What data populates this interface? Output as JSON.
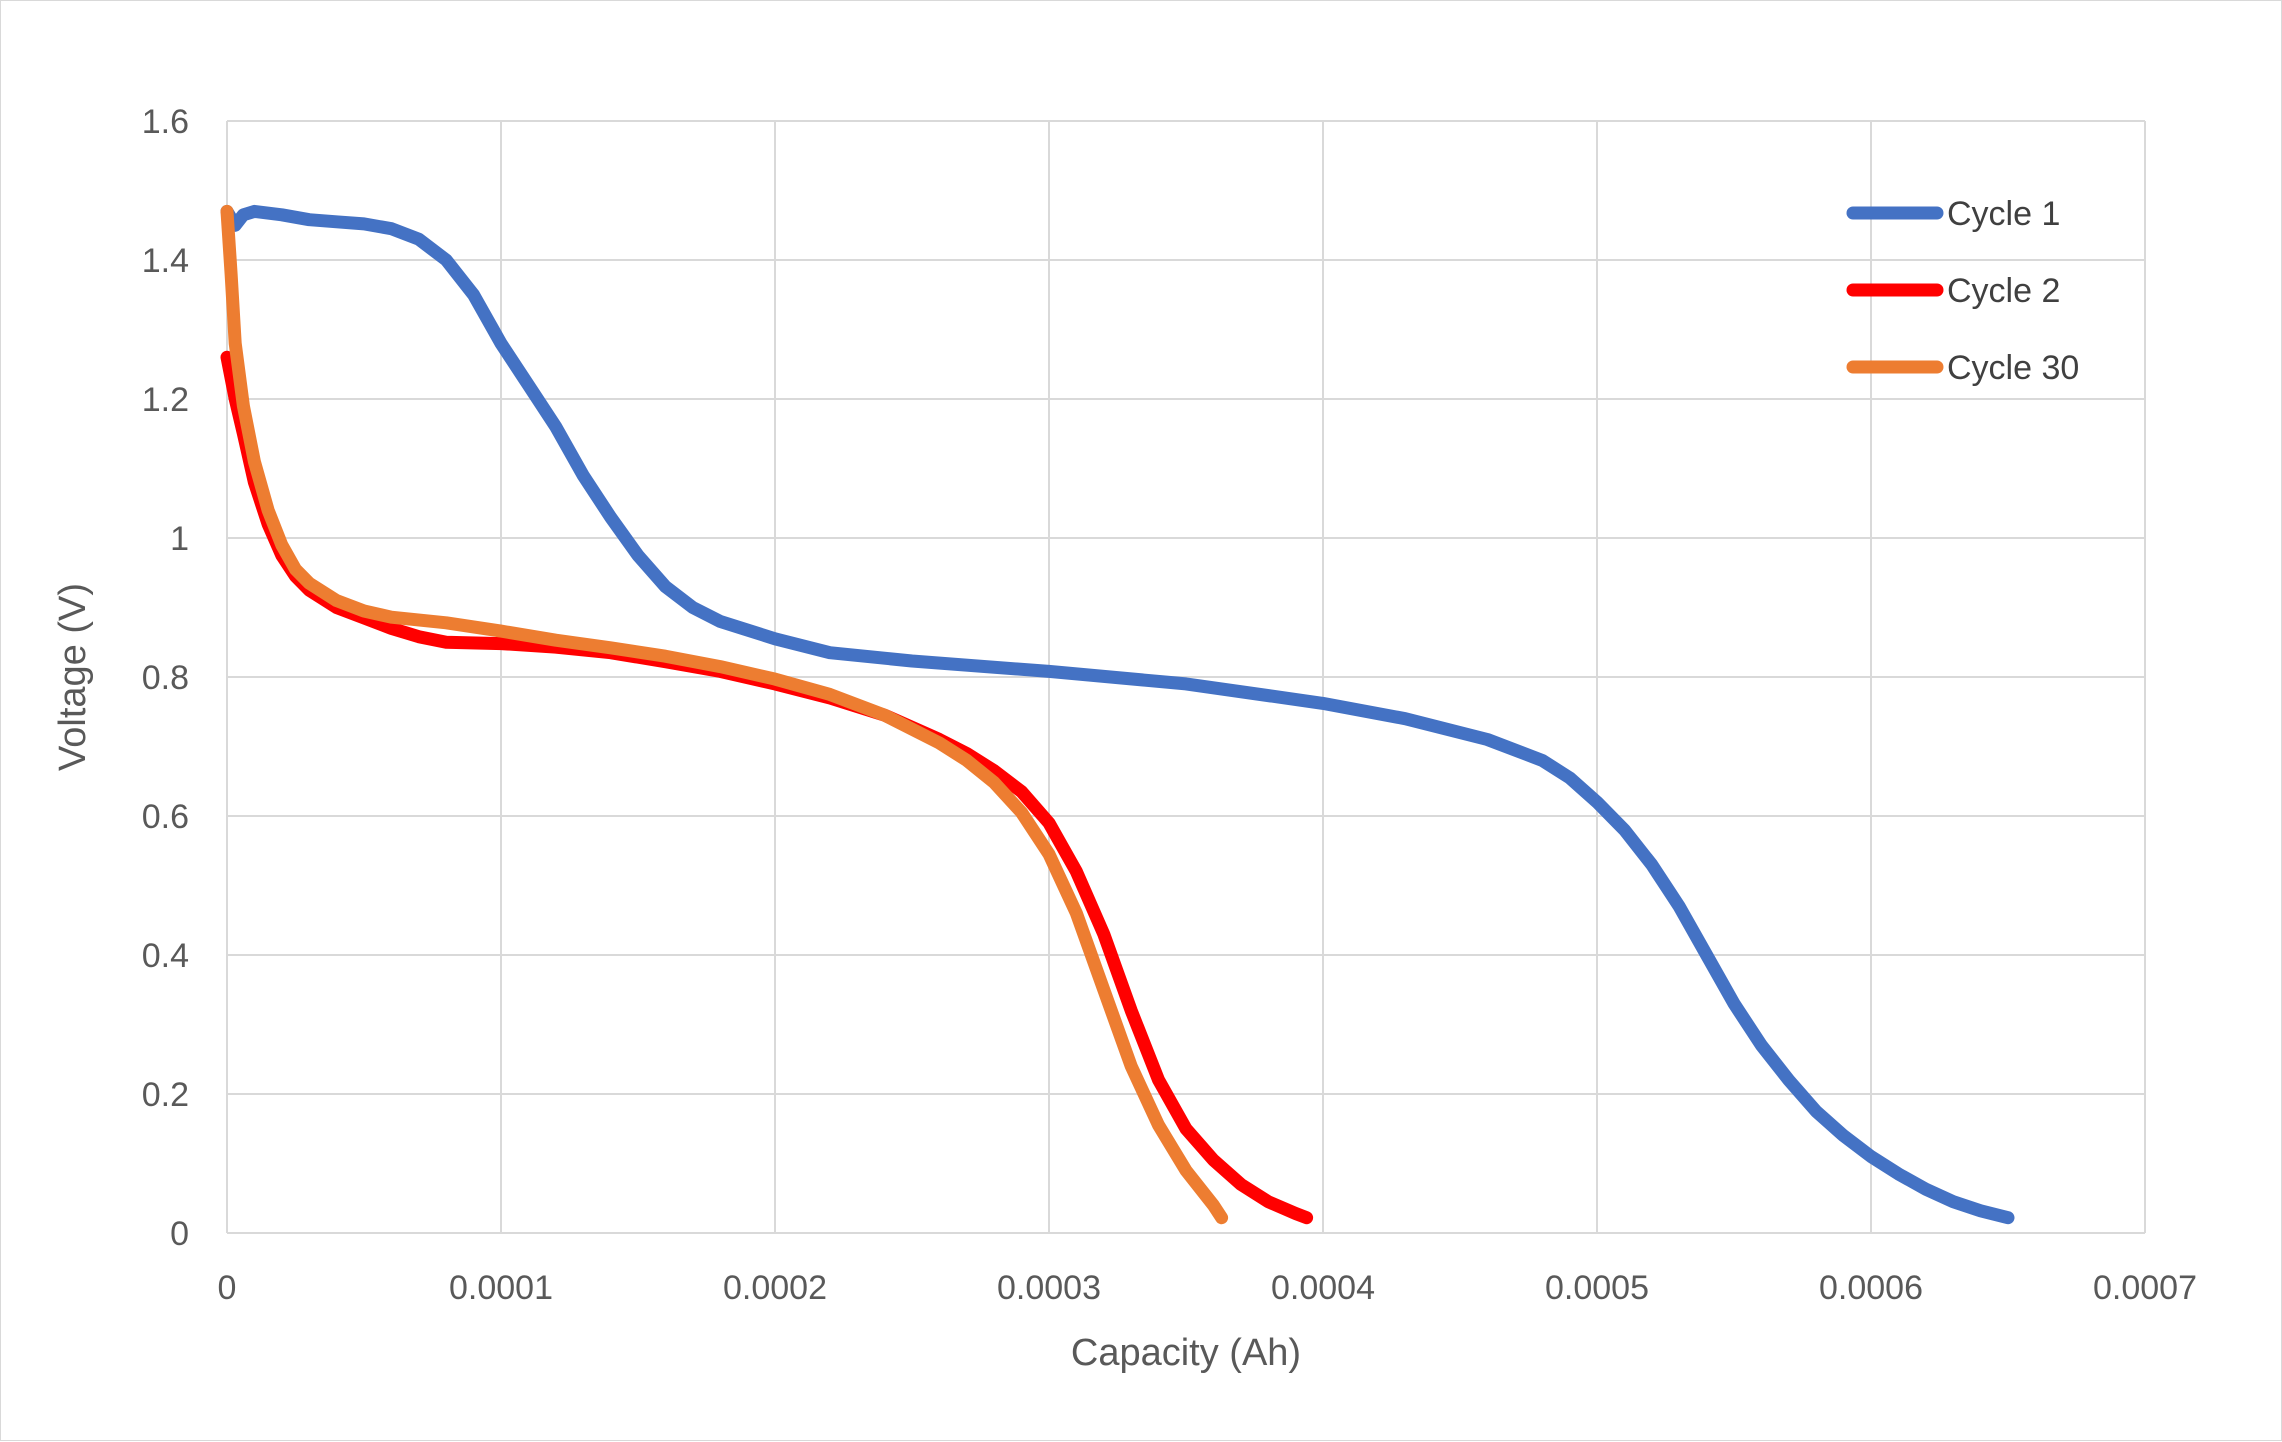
{
  "chart_data": {
    "type": "line",
    "title": "",
    "xlabel": "Capacity (Ah)",
    "ylabel": "Voltage (V)",
    "xlim": [
      0,
      0.0007
    ],
    "ylim": [
      0,
      1.6
    ],
    "x_ticks": [
      0,
      0.0001,
      0.0002,
      0.0003,
      0.0004,
      0.0005,
      0.0006,
      0.0007
    ],
    "x_tick_labels": [
      "0",
      "0.0001",
      "0.0002",
      "0.0003",
      "0.0004",
      "0.0005",
      "0.0006",
      "0.0007"
    ],
    "y_ticks": [
      0,
      0.2,
      0.4,
      0.6,
      0.8,
      1,
      1.2,
      1.4,
      1.6
    ],
    "y_tick_labels": [
      "0",
      "0.2",
      "0.4",
      "0.6",
      "0.8",
      "1",
      "1.2",
      "1.4",
      "1.6"
    ],
    "grid": true,
    "legend_position": "top-right",
    "series": [
      {
        "name": "Cycle 1",
        "color": "#4472c4",
        "points": [
          [
            0,
            1.47
          ],
          [
            3e-06,
            1.45
          ],
          [
            6e-06,
            1.465
          ],
          [
            1e-05,
            1.47
          ],
          [
            2e-05,
            1.465
          ],
          [
            3e-05,
            1.458
          ],
          [
            4e-05,
            1.455
          ],
          [
            5e-05,
            1.452
          ],
          [
            6e-05,
            1.445
          ],
          [
            7e-05,
            1.43
          ],
          [
            8e-05,
            1.4
          ],
          [
            9e-05,
            1.35
          ],
          [
            0.0001,
            1.28
          ],
          [
            0.00011,
            1.22
          ],
          [
            0.00012,
            1.16
          ],
          [
            0.00013,
            1.09
          ],
          [
            0.00014,
            1.03
          ],
          [
            0.00015,
            0.975
          ],
          [
            0.00016,
            0.93
          ],
          [
            0.00017,
            0.9
          ],
          [
            0.00018,
            0.88
          ],
          [
            0.0002,
            0.855
          ],
          [
            0.00022,
            0.835
          ],
          [
            0.00025,
            0.823
          ],
          [
            0.0003,
            0.808
          ],
          [
            0.00035,
            0.79
          ],
          [
            0.0004,
            0.762
          ],
          [
            0.00043,
            0.74
          ],
          [
            0.00046,
            0.71
          ],
          [
            0.00048,
            0.68
          ],
          [
            0.00049,
            0.655
          ],
          [
            0.0005,
            0.62
          ],
          [
            0.00051,
            0.58
          ],
          [
            0.00052,
            0.53
          ],
          [
            0.00053,
            0.47
          ],
          [
            0.00054,
            0.4
          ],
          [
            0.00055,
            0.33
          ],
          [
            0.00056,
            0.27
          ],
          [
            0.00057,
            0.22
          ],
          [
            0.00058,
            0.175
          ],
          [
            0.00059,
            0.14
          ],
          [
            0.0006,
            0.11
          ],
          [
            0.00061,
            0.085
          ],
          [
            0.00062,
            0.063
          ],
          [
            0.00063,
            0.045
          ],
          [
            0.00064,
            0.032
          ],
          [
            0.00065,
            0.022
          ]
        ]
      },
      {
        "name": "Cycle 2",
        "color": "#ff0000",
        "points": [
          [
            0,
            1.26
          ],
          [
            3e-06,
            1.2
          ],
          [
            6e-06,
            1.15
          ],
          [
            1e-05,
            1.08
          ],
          [
            1.5e-05,
            1.02
          ],
          [
            2e-05,
            0.975
          ],
          [
            2.5e-05,
            0.945
          ],
          [
            3e-05,
            0.925
          ],
          [
            4e-05,
            0.9
          ],
          [
            5e-05,
            0.885
          ],
          [
            6e-05,
            0.87
          ],
          [
            7e-05,
            0.858
          ],
          [
            8e-05,
            0.85
          ],
          [
            0.0001,
            0.848
          ],
          [
            0.00012,
            0.843
          ],
          [
            0.00014,
            0.835
          ],
          [
            0.00016,
            0.822
          ],
          [
            0.00018,
            0.808
          ],
          [
            0.0002,
            0.79
          ],
          [
            0.00022,
            0.77
          ],
          [
            0.00024,
            0.745
          ],
          [
            0.00026,
            0.71
          ],
          [
            0.00027,
            0.69
          ],
          [
            0.00028,
            0.665
          ],
          [
            0.00029,
            0.635
          ],
          [
            0.0003,
            0.59
          ],
          [
            0.00031,
            0.52
          ],
          [
            0.00032,
            0.43
          ],
          [
            0.00033,
            0.32
          ],
          [
            0.00034,
            0.22
          ],
          [
            0.00035,
            0.15
          ],
          [
            0.00036,
            0.105
          ],
          [
            0.00037,
            0.07
          ],
          [
            0.00038,
            0.045
          ],
          [
            0.00039,
            0.028
          ],
          [
            0.000394,
            0.022
          ]
        ]
      },
      {
        "name": "Cycle 30",
        "color": "#ed7d31",
        "points": [
          [
            0,
            1.47
          ],
          [
            1.5e-06,
            1.38
          ],
          [
            3e-06,
            1.28
          ],
          [
            6e-06,
            1.19
          ],
          [
            1e-05,
            1.11
          ],
          [
            1.5e-05,
            1.04
          ],
          [
            2e-05,
            0.99
          ],
          [
            2.5e-05,
            0.955
          ],
          [
            3e-05,
            0.935
          ],
          [
            4e-05,
            0.91
          ],
          [
            5e-05,
            0.895
          ],
          [
            6e-05,
            0.886
          ],
          [
            8e-05,
            0.878
          ],
          [
            0.0001,
            0.866
          ],
          [
            0.00012,
            0.853
          ],
          [
            0.00014,
            0.842
          ],
          [
            0.00016,
            0.83
          ],
          [
            0.00018,
            0.815
          ],
          [
            0.0002,
            0.797
          ],
          [
            0.00022,
            0.775
          ],
          [
            0.00024,
            0.745
          ],
          [
            0.00026,
            0.705
          ],
          [
            0.00027,
            0.68
          ],
          [
            0.00028,
            0.648
          ],
          [
            0.00029,
            0.605
          ],
          [
            0.0003,
            0.545
          ],
          [
            0.00031,
            0.46
          ],
          [
            0.00032,
            0.35
          ],
          [
            0.00033,
            0.24
          ],
          [
            0.00034,
            0.155
          ],
          [
            0.00035,
            0.09
          ],
          [
            0.00036,
            0.04
          ],
          [
            0.000363,
            0.022
          ]
        ]
      }
    ]
  }
}
